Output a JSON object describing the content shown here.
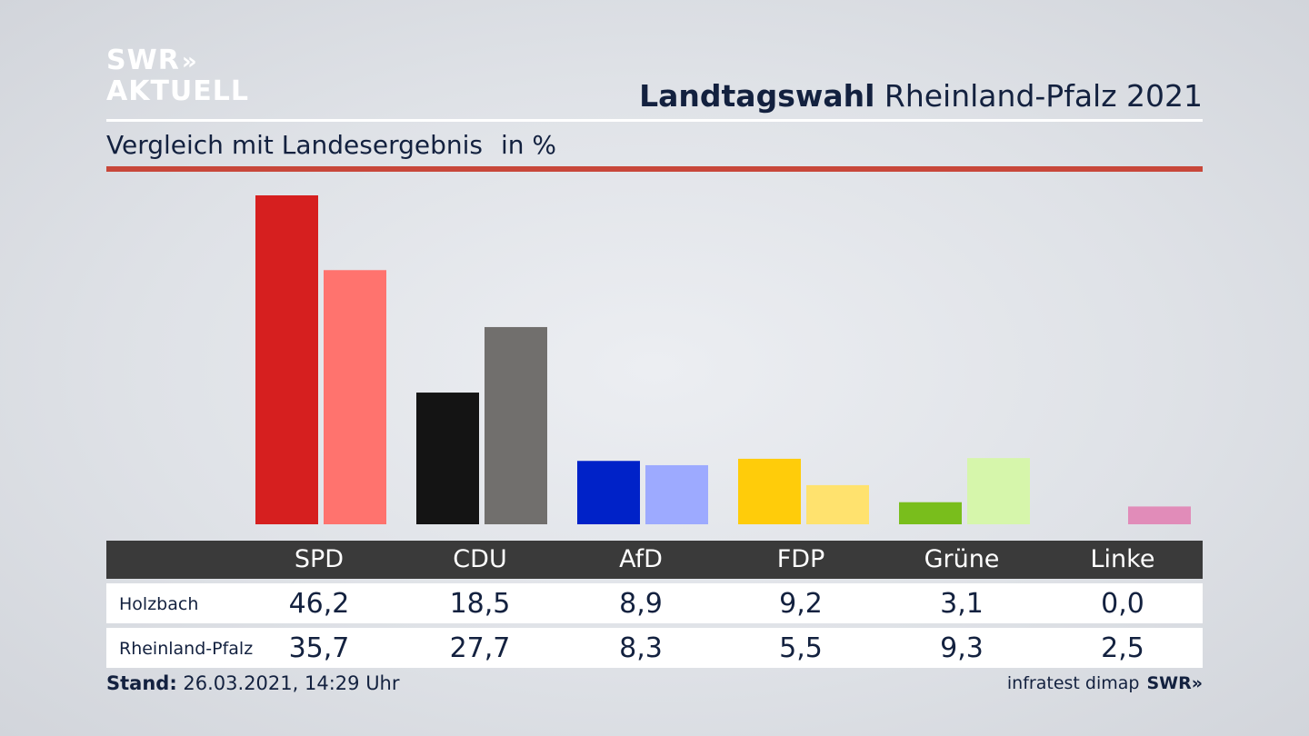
{
  "brand": {
    "logo_line1": "SWR",
    "logo_line2": "AKTUELL",
    "logo_chevrons": "»"
  },
  "header": {
    "title_bold": "Landtagswahl",
    "title_rest": "Rheinland-Pfalz 2021",
    "subtitle": "Vergleich mit Landesergebnis",
    "unit": "in %"
  },
  "colors": {
    "rule": "#c8473a",
    "SPD": [
      "#d61f1f",
      "#ff736e"
    ],
    "CDU": [
      "#141414",
      "#716f6d"
    ],
    "AfD": [
      "#0022c8",
      "#9daaff"
    ],
    "FDP": [
      "#ffcc0a",
      "#ffe26e"
    ],
    "Grüne": [
      "#79be1c",
      "#d6f6ab"
    ],
    "Linke": [
      "#c64f8f",
      "#e18cb9"
    ]
  },
  "chart_data": {
    "type": "bar",
    "categories": [
      "SPD",
      "CDU",
      "AfD",
      "FDP",
      "Grüne",
      "Linke"
    ],
    "series": [
      {
        "name": "Holzbach",
        "values": [
          46.2,
          18.5,
          8.9,
          9.2,
          3.1,
          0.0
        ]
      },
      {
        "name": "Rheinland-Pfalz",
        "values": [
          35.7,
          27.7,
          8.3,
          5.5,
          9.3,
          2.5
        ]
      }
    ],
    "ylim": [
      0,
      46.2
    ]
  },
  "table": {
    "headers": [
      "SPD",
      "CDU",
      "AfD",
      "FDP",
      "Grüne",
      "Linke"
    ],
    "rows": [
      {
        "label": "Holzbach",
        "values": [
          "46,2",
          "18,5",
          "8,9",
          "9,2",
          "3,1",
          "0,0"
        ]
      },
      {
        "label": "Rheinland-Pfalz",
        "values": [
          "35,7",
          "27,7",
          "8,3",
          "5,5",
          "9,3",
          "2,5"
        ]
      }
    ]
  },
  "footer": {
    "stand_label": "Stand:",
    "stand_value": "26.03.2021, 14:29 Uhr",
    "source": "infratest dimap",
    "brand": "SWR»"
  }
}
